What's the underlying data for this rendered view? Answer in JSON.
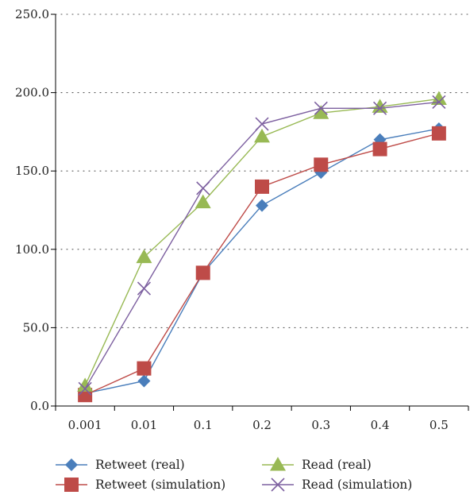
{
  "chart_data": {
    "type": "line",
    "categories": [
      "0.001",
      "0.01",
      "0.1",
      "0.2",
      "0.3",
      "0.4",
      "0.5"
    ],
    "ylim": [
      0,
      250
    ],
    "yticks": [
      "0.0",
      "50.0",
      "100.0",
      "150.0",
      "200.0",
      "250.0"
    ],
    "ytick_values": [
      0,
      50,
      100,
      150,
      200,
      250
    ],
    "grid": "horizontal dotted",
    "legend_position": "bottom",
    "series": [
      {
        "name": "Retweet (real)",
        "color": "#4a7ebb",
        "marker": "diamond",
        "values": [
          8,
          16,
          85,
          128,
          149,
          170,
          177
        ]
      },
      {
        "name": "Retweet (simulation)",
        "color": "#be4b48",
        "marker": "square",
        "values": [
          7,
          24,
          85,
          140,
          154,
          164,
          174
        ]
      },
      {
        "name": "Read (real)",
        "color": "#98b954",
        "marker": "triangle",
        "values": [
          13,
          95,
          130,
          172,
          187,
          191,
          196
        ]
      },
      {
        "name": "Read (simulation)",
        "color": "#7d60a0",
        "marker": "cross",
        "values": [
          11,
          75,
          139,
          180,
          190,
          190,
          194
        ]
      }
    ]
  }
}
